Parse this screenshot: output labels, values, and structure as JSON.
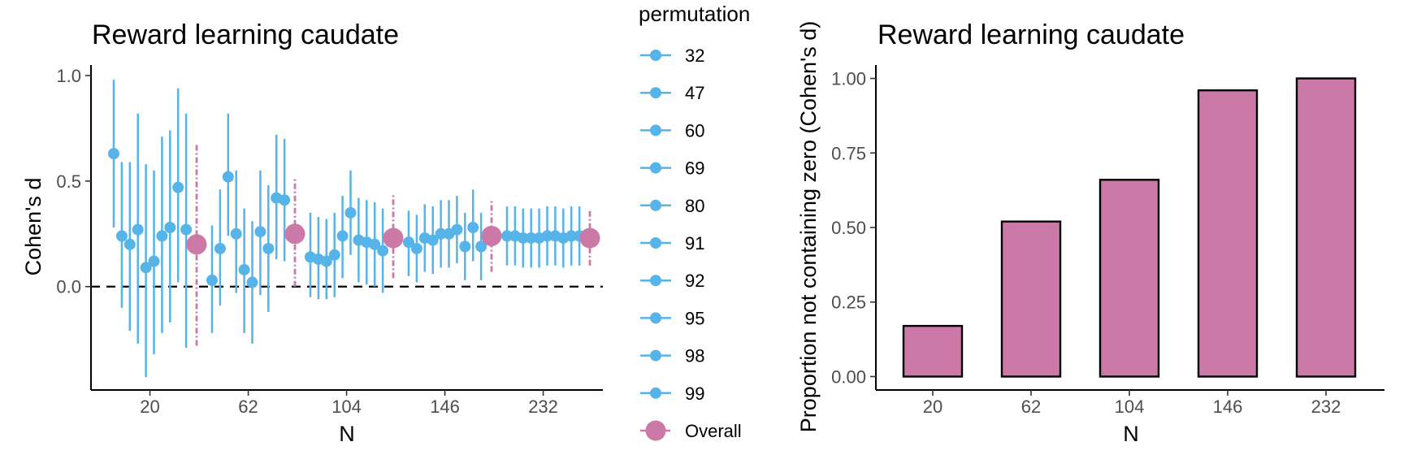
{
  "colors": {
    "perm": "#56B4E9",
    "overall": "#CC79A7",
    "bar_outline": "#000000"
  },
  "chart_data": [
    {
      "type": "scatter",
      "title": "Reward learning caudate",
      "xlabel": "N",
      "ylabel": "Cohen's d",
      "categories": [
        "20",
        "62",
        "104",
        "146",
        "232"
      ],
      "ylim": [
        -0.49,
        1.05
      ],
      "yticks": [
        "0.0",
        "0.5",
        "1.0"
      ],
      "reference_line": 0,
      "grid": false,
      "series": [
        {
          "name": "32",
          "values": [
            {
              "y": 0.63,
              "lo": 0.28,
              "hi": 0.98
            },
            {
              "y": 0.03,
              "lo": -0.22,
              "hi": 0.29
            },
            {
              "y": 0.14,
              "lo": -0.05,
              "hi": 0.35
            },
            {
              "y": 0.21,
              "lo": 0.05,
              "hi": 0.36
            },
            {
              "y": 0.24,
              "lo": 0.1,
              "hi": 0.38
            }
          ]
        },
        {
          "name": "47",
          "values": [
            {
              "y": 0.24,
              "lo": -0.1,
              "hi": 0.59
            },
            {
              "y": 0.18,
              "lo": -0.09,
              "hi": 0.46
            },
            {
              "y": 0.13,
              "lo": -0.06,
              "hi": 0.33
            },
            {
              "y": 0.18,
              "lo": 0.02,
              "hi": 0.34
            },
            {
              "y": 0.24,
              "lo": 0.1,
              "hi": 0.38
            }
          ]
        },
        {
          "name": "60",
          "values": [
            {
              "y": 0.2,
              "lo": -0.21,
              "hi": 0.59
            },
            {
              "y": 0.52,
              "lo": 0.24,
              "hi": 0.82
            },
            {
              "y": 0.12,
              "lo": -0.06,
              "hi": 0.32
            },
            {
              "y": 0.23,
              "lo": 0.07,
              "hi": 0.39
            },
            {
              "y": 0.23,
              "lo": 0.09,
              "hi": 0.37
            }
          ]
        },
        {
          "name": "69",
          "values": [
            {
              "y": 0.27,
              "lo": -0.27,
              "hi": 0.82
            },
            {
              "y": 0.25,
              "lo": -0.03,
              "hi": 0.55
            },
            {
              "y": 0.15,
              "lo": -0.05,
              "hi": 0.35
            },
            {
              "y": 0.22,
              "lo": 0.06,
              "hi": 0.38
            },
            {
              "y": 0.23,
              "lo": 0.09,
              "hi": 0.37
            }
          ]
        },
        {
          "name": "80",
          "values": [
            {
              "y": 0.09,
              "lo": -0.43,
              "hi": 0.58
            },
            {
              "y": 0.08,
              "lo": -0.22,
              "hi": 0.37
            },
            {
              "y": 0.24,
              "lo": 0.04,
              "hi": 0.43
            },
            {
              "y": 0.25,
              "lo": 0.09,
              "hi": 0.41
            },
            {
              "y": 0.23,
              "lo": 0.09,
              "hi": 0.37
            }
          ]
        },
        {
          "name": "91",
          "values": [
            {
              "y": 0.12,
              "lo": -0.32,
              "hi": 0.55
            },
            {
              "y": 0.02,
              "lo": -0.27,
              "hi": 0.31
            },
            {
              "y": 0.35,
              "lo": 0.15,
              "hi": 0.55
            },
            {
              "y": 0.25,
              "lo": 0.09,
              "hi": 0.41
            },
            {
              "y": 0.24,
              "lo": 0.1,
              "hi": 0.38
            }
          ]
        },
        {
          "name": "92",
          "values": [
            {
              "y": 0.24,
              "lo": -0.22,
              "hi": 0.71
            },
            {
              "y": 0.26,
              "lo": -0.04,
              "hi": 0.55
            },
            {
              "y": 0.22,
              "lo": 0.02,
              "hi": 0.42
            },
            {
              "y": 0.27,
              "lo": 0.11,
              "hi": 0.43
            },
            {
              "y": 0.24,
              "lo": 0.1,
              "hi": 0.38
            }
          ]
        },
        {
          "name": "95",
          "values": [
            {
              "y": 0.28,
              "lo": -0.17,
              "hi": 0.74
            },
            {
              "y": 0.18,
              "lo": -0.12,
              "hi": 0.48
            },
            {
              "y": 0.21,
              "lo": 0.01,
              "hi": 0.41
            },
            {
              "y": 0.19,
              "lo": 0.03,
              "hi": 0.35
            },
            {
              "y": 0.23,
              "lo": 0.09,
              "hi": 0.37
            }
          ]
        },
        {
          "name": "98",
          "values": [
            {
              "y": 0.47,
              "lo": 0.02,
              "hi": 0.94
            },
            {
              "y": 0.42,
              "lo": 0.13,
              "hi": 0.72
            },
            {
              "y": 0.2,
              "lo": 0.0,
              "hi": 0.4
            },
            {
              "y": 0.28,
              "lo": 0.12,
              "hi": 0.46
            },
            {
              "y": 0.24,
              "lo": 0.1,
              "hi": 0.38
            }
          ]
        },
        {
          "name": "99",
          "values": [
            {
              "y": 0.27,
              "lo": -0.29,
              "hi": 0.82
            },
            {
              "y": 0.41,
              "lo": 0.12,
              "hi": 0.7
            },
            {
              "y": 0.17,
              "lo": -0.03,
              "hi": 0.37
            },
            {
              "y": 0.19,
              "lo": 0.03,
              "hi": 0.35
            },
            {
              "y": 0.24,
              "lo": 0.1,
              "hi": 0.38
            }
          ]
        },
        {
          "name": "Overall",
          "values": [
            {
              "y": 0.2,
              "lo": -0.28,
              "hi": 0.68
            },
            {
              "y": 0.25,
              "lo": 0.0,
              "hi": 0.51
            },
            {
              "y": 0.23,
              "lo": 0.04,
              "hi": 0.44
            },
            {
              "y": 0.24,
              "lo": 0.07,
              "hi": 0.41
            },
            {
              "y": 0.23,
              "lo": 0.1,
              "hi": 0.37
            }
          ]
        }
      ],
      "legend": {
        "title": "permutation",
        "position": "right"
      }
    },
    {
      "type": "bar",
      "title": "Reward learning caudate",
      "xlabel": "N",
      "ylabel": "Proportion not containing zero (Cohen's d)",
      "categories": [
        "20",
        "62",
        "104",
        "146",
        "232"
      ],
      "values": [
        0.17,
        0.52,
        0.66,
        0.96,
        1.0
      ],
      "ylim": [
        -0.045,
        1.045
      ],
      "yticks": [
        "0.00",
        "0.25",
        "0.50",
        "0.75",
        "1.00"
      ],
      "grid": false
    }
  ]
}
